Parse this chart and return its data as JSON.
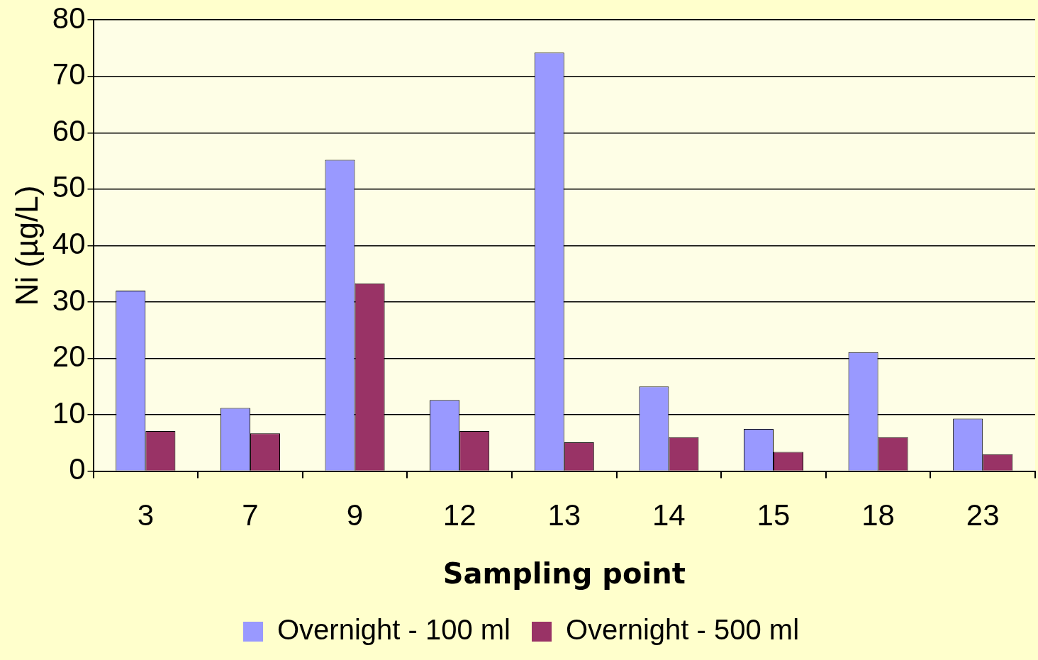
{
  "chart_data": {
    "type": "bar",
    "xlabel": "Sampling point",
    "ylabel": "Ni (µg/L)",
    "categories": [
      "3",
      "7",
      "9",
      "12",
      "13",
      "14",
      "15",
      "18",
      "23"
    ],
    "series": [
      {
        "name": "Overnight - 100 ml",
        "color": "#9999ff",
        "values": [
          32,
          11.2,
          55.2,
          12.6,
          74.2,
          15,
          7.5,
          21.1,
          9.3
        ]
      },
      {
        "name": "Overnight - 500 ml",
        "color": "#993366",
        "values": [
          7.1,
          6.7,
          33.3,
          7.1,
          5.1,
          6,
          3.4,
          6,
          3
        ]
      }
    ],
    "ylim": [
      0,
      80
    ],
    "yticks": [
      0,
      10,
      20,
      30,
      40,
      50,
      60,
      70,
      80
    ],
    "grid": "y",
    "legend": "bottom"
  }
}
